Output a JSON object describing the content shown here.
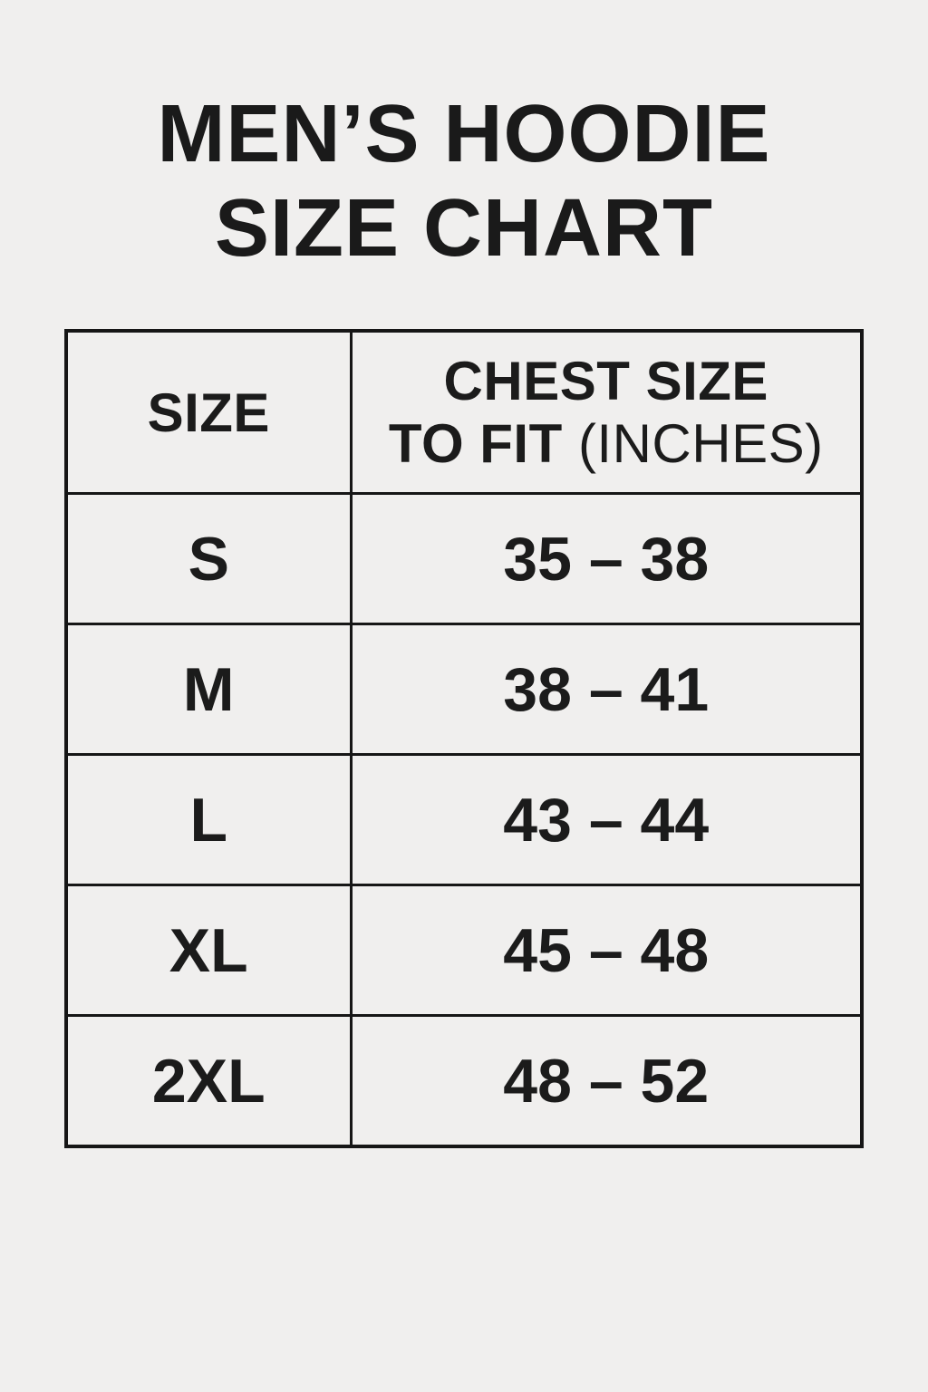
{
  "meta": {
    "background_color": "#f0efee",
    "text_color": "#1a1a1a",
    "border_color": "#161616"
  },
  "title": {
    "line1": "MEN’S HOODIE",
    "line2": "SIZE CHART"
  },
  "table": {
    "col1_header": "SIZE",
    "col2_header_line1": "CHEST SIZE",
    "col2_header_line2_bold": "TO FIT",
    "col2_header_line2_light": "(INCHES)",
    "rows": [
      {
        "size": "S",
        "chest": "35 – 38"
      },
      {
        "size": "M",
        "chest": "38 – 41"
      },
      {
        "size": "L",
        "chest": "43 – 44"
      },
      {
        "size": "XL",
        "chest": "45 – 48"
      },
      {
        "size": "2XL",
        "chest": "48 – 52"
      }
    ]
  },
  "chart_data": {
    "type": "table",
    "title": "MEN’S HOODIE SIZE CHART",
    "columns": [
      "SIZE",
      "CHEST SIZE TO FIT (INCHES)"
    ],
    "rows": [
      [
        "S",
        "35 – 38"
      ],
      [
        "M",
        "38 – 41"
      ],
      [
        "L",
        "43 – 44"
      ],
      [
        "XL",
        "45 – 48"
      ],
      [
        "2XL",
        "48 – 52"
      ]
    ],
    "chest_ranges_inches": [
      {
        "size": "S",
        "min": 35,
        "max": 38
      },
      {
        "size": "M",
        "min": 38,
        "max": 41
      },
      {
        "size": "L",
        "min": 43,
        "max": 44
      },
      {
        "size": "XL",
        "min": 45,
        "max": 48
      },
      {
        "size": "2XL",
        "min": 48,
        "max": 52
      }
    ]
  }
}
